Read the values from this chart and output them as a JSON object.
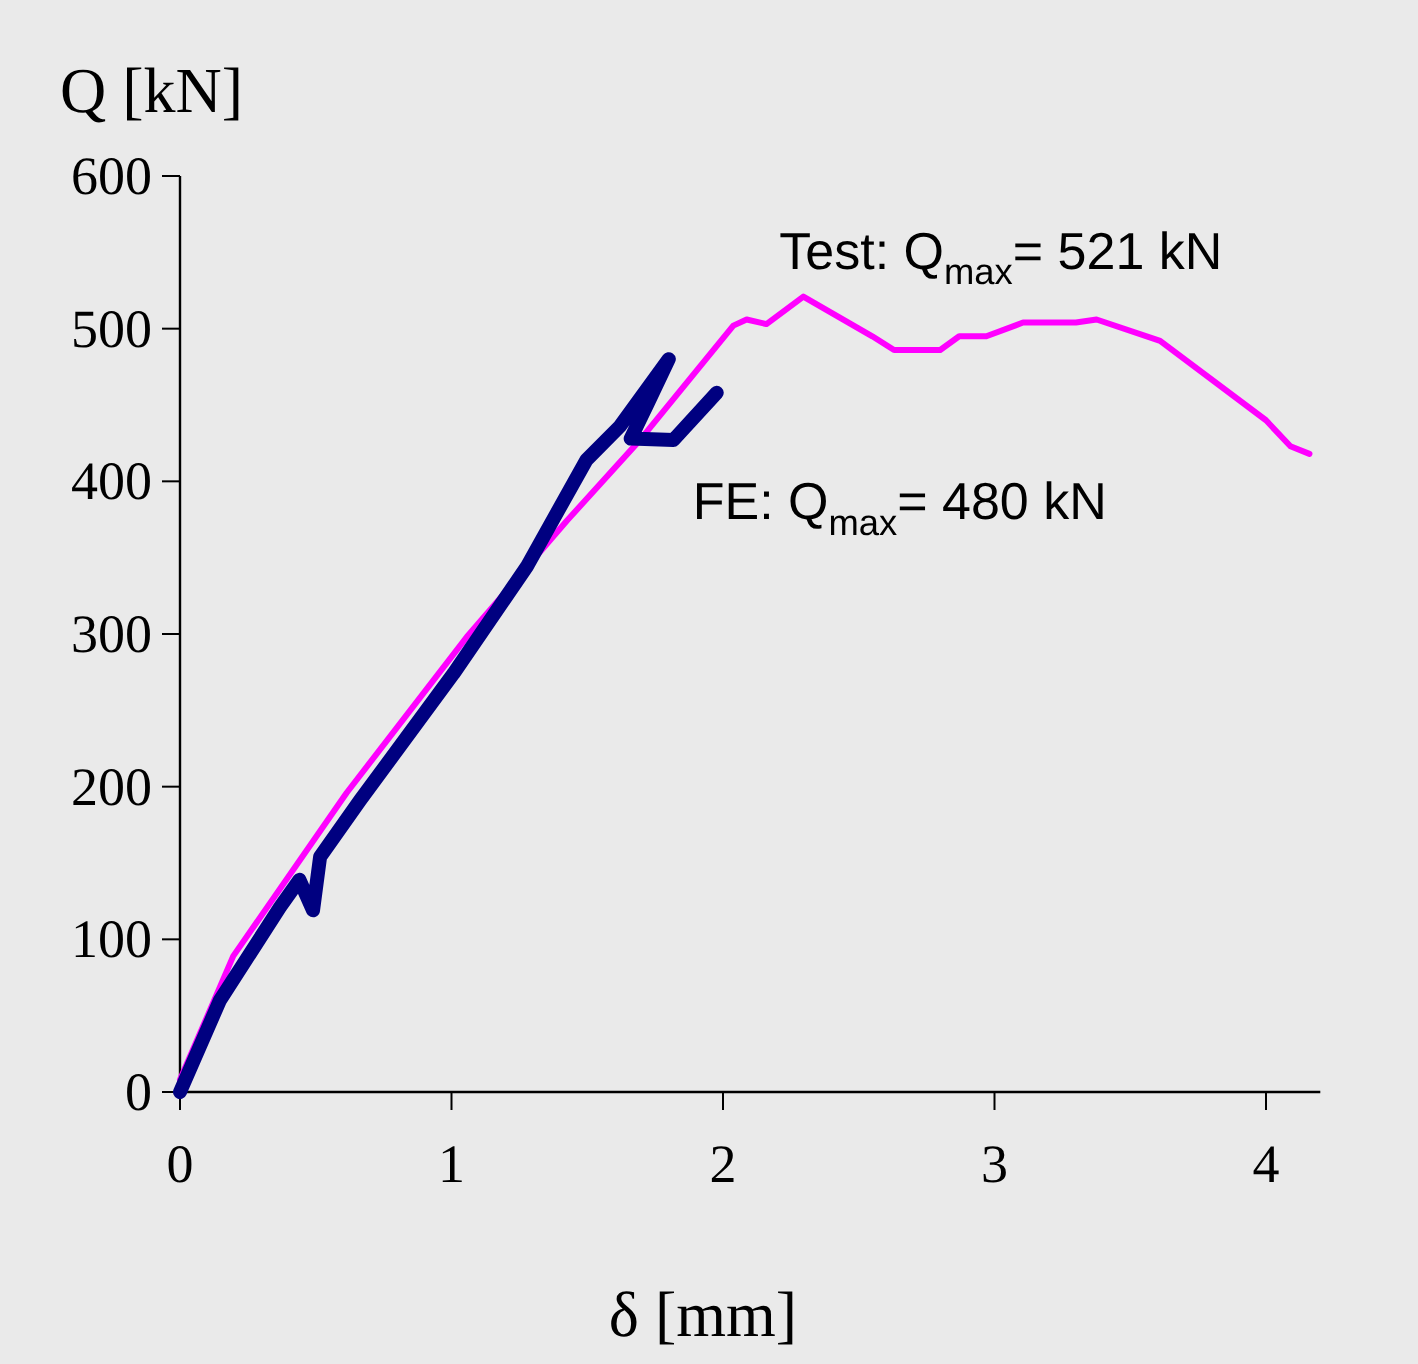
{
  "chart_data": {
    "type": "line",
    "xlabel": "δ [mm]",
    "ylabel": "Q [kN]",
    "xlim": [
      0,
      4.2
    ],
    "ylim": [
      0,
      600
    ],
    "xticks": [
      0,
      1,
      2,
      3,
      4
    ],
    "yticks": [
      0,
      100,
      200,
      300,
      400,
      500,
      600
    ],
    "grid": false,
    "marker": "none",
    "series": [
      {
        "color": "#ff00ff",
        "x": [
          0,
          0.196,
          0.614,
          1.056,
          1.424,
          1.694,
          2.038,
          2.087,
          2.16,
          2.296,
          2.55,
          2.63,
          2.8,
          2.87,
          2.97,
          3.105,
          3.3,
          3.376,
          3.61,
          4.0,
          4.09,
          4.16
        ],
        "values": [
          8,
          89,
          196,
          298,
          374,
          427,
          502,
          506,
          503,
          521,
          495,
          486,
          486,
          495,
          495,
          504,
          504,
          506,
          492,
          440,
          423,
          418
        ]
      },
      {
        "color": "#000080",
        "x": [
          0,
          0.147,
          0.368,
          0.44,
          0.49,
          0.516,
          0.663,
          1.007,
          1.277,
          1.497,
          1.62,
          1.8,
          1.72,
          1.66,
          1.817,
          1.977
        ],
        "values": [
          0,
          60,
          121,
          139,
          119,
          154,
          191,
          274,
          344,
          414,
          436,
          480,
          450,
          428,
          427,
          458
        ]
      }
    ],
    "annotations": [
      {
        "text": "Test: Q$_{max}$= 521 kN",
        "x": 2.296,
        "y": 521
      },
      {
        "text": "FE: Q$_{max}$= 480 kN",
        "x": 1.8,
        "y": 480
      }
    ]
  }
}
